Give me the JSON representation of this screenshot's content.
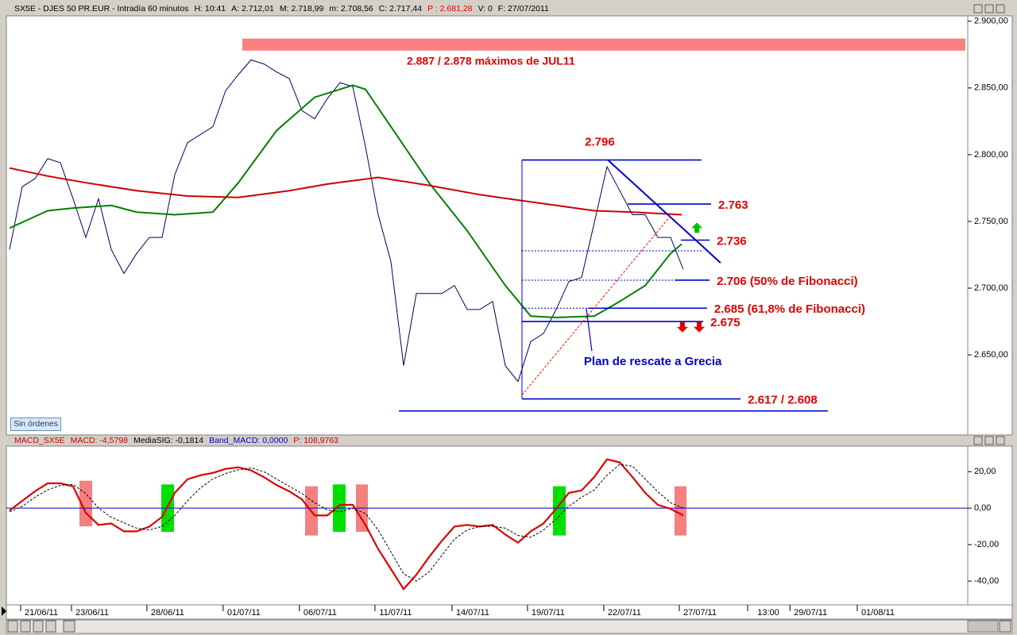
{
  "header": {
    "parts": [
      {
        "text": "SX5E - DJES 50 PR.EUR - Intradía 60 minutos",
        "color": "#000000"
      },
      {
        "text": "H: 10:41",
        "color": "#000000"
      },
      {
        "text": "A: 2.712,01",
        "color": "#000000"
      },
      {
        "text": "M: 2.718,99",
        "color": "#000000"
      },
      {
        "text": "m: 2.708,56",
        "color": "#000000"
      },
      {
        "text": "C: 2.717,44",
        "color": "#000000"
      },
      {
        "text": "P : 2.681,28",
        "color": "#e00000"
      },
      {
        "text": "V: 0",
        "color": "#000000"
      },
      {
        "text": "F: 27/07/2011",
        "color": "#000000"
      }
    ]
  },
  "orders_button": "Sin órdenes",
  "chart_data": [
    {
      "type": "line",
      "xlim": [
        0,
        37.8125
      ],
      "ylim": [
        2590,
        2904
      ],
      "yticks": [
        {
          "value": 2900,
          "label": "2.900,00"
        },
        {
          "value": 2850,
          "label": "2.850,00"
        },
        {
          "value": 2800,
          "label": "2.800,00"
        },
        {
          "value": 2750,
          "label": "2.750,00"
        },
        {
          "value": 2700,
          "label": "2.700,00"
        },
        {
          "value": 2650,
          "label": "2.650,00"
        }
      ],
      "series": [
        {
          "color": "#000060",
          "width": 1,
          "x": [
            0.125,
            0.625,
            1.125,
            1.625,
            2.125,
            2.625,
            3.125,
            3.625,
            4.125,
            4.625,
            5.125,
            5.625,
            6.125,
            6.625,
            7.125,
            7.625,
            8.125,
            8.625,
            9.125,
            9.625,
            10.125,
            10.625,
            11.125,
            11.625,
            12.125,
            12.625,
            13.125,
            13.625,
            14.125,
            14.625,
            15.125,
            15.625,
            16.125,
            16.625,
            17.125,
            17.625,
            18.125,
            18.625,
            19.125,
            19.625,
            20.125,
            20.625,
            21.125,
            21.625,
            22.125,
            22.625,
            23.125,
            23.625,
            24.125,
            24.625,
            25.125,
            25.625,
            26.125,
            26.625
          ],
          "values": [
            2729,
            2776,
            2782,
            2797,
            2794,
            2767,
            2738,
            2767,
            2729,
            2711,
            2726,
            2738,
            2738,
            2785,
            2809,
            2815,
            2821,
            2848,
            2860,
            2871,
            2868,
            2862,
            2857,
            2833,
            2827,
            2842,
            2854,
            2851,
            2806,
            2755,
            2720,
            2642,
            2696,
            2696,
            2696,
            2702,
            2684,
            2684,
            2690,
            2642,
            2630,
            2660,
            2666,
            2684,
            2705,
            2708,
            2749,
            2791,
            2773,
            2755,
            2755,
            2738,
            2738,
            2714
          ]
        },
        {
          "color": "#008000",
          "width": 2,
          "x": [
            0.125,
            1.625,
            2.625,
            4.125,
            5.125,
            6.625,
            8.125,
            9.125,
            10.625,
            12.125,
            13.625,
            14.125,
            15.125,
            16.625,
            18.125,
            19.625,
            20.625,
            21.625,
            23.125,
            24.125,
            25.125,
            26.125,
            26.5625
          ],
          "values": [
            2745,
            2758,
            2760,
            2762,
            2757,
            2755,
            2757,
            2779,
            2818,
            2843,
            2852,
            2849,
            2821,
            2779,
            2743,
            2702,
            2679,
            2678,
            2679,
            2690,
            2702,
            2726,
            2733
          ]
        },
        {
          "color": "#cc0000",
          "width": 2,
          "x": [
            0.125,
            1.625,
            3.125,
            5.125,
            7.125,
            9.125,
            11.125,
            12.625,
            14.625,
            16.625,
            18.625,
            20.125,
            21.625,
            23.125,
            24.625,
            26.5625
          ],
          "values": [
            2790,
            2784,
            2779,
            2773,
            2769,
            2768,
            2773,
            2778,
            2783,
            2777,
            2770,
            2766,
            2762,
            2758,
            2757,
            2755
          ]
        }
      ],
      "band": {
        "values": [
          2887,
          2878
        ],
        "label": "2.887 / 2.878 máximos de JUL11",
        "x": [
          9.28,
          37.72
        ],
        "color": "#f88080"
      },
      "levels": [
        {
          "value": 2796,
          "label": "2.796",
          "x": [
            20.28,
            27.34
          ],
          "label_side": "top"
        },
        {
          "value": 2763,
          "label": "2.763",
          "x": [
            24.44,
            27.72
          ],
          "label_side": "right"
        },
        {
          "value": 2736,
          "label": "2.736",
          "x": [
            26.53,
            27.66
          ],
          "label_side": "right"
        },
        {
          "value": 2706,
          "label": "2.706 (50% de Fibonacci)",
          "x": [
            26.31,
            27.66
          ],
          "label_side": "right"
        },
        {
          "value": 2685,
          "label": "2.685 (61,8% de Fibonacci)",
          "x": [
            22.88,
            27.56
          ],
          "label_side": "right"
        },
        {
          "value": 2675,
          "label": "2.675",
          "x": [
            20.28,
            27.41
          ],
          "label_side": "right"
        },
        {
          "value": 2617,
          "label": "2.617 / 2.608",
          "x": [
            20.28,
            28.88
          ],
          "label_side": "right"
        },
        {
          "value": 2608,
          "x": [
            15.44,
            32.31
          ]
        }
      ],
      "level_color": "#0000cc",
      "label_color": "#e00000",
      "dotted_levels": [
        {
          "value": 2728,
          "x": [
            20.28,
            27.41
          ]
        },
        {
          "value": 2706,
          "x": [
            20.28,
            26.31
          ]
        },
        {
          "value": 2685,
          "x": [
            20.28,
            22.88
          ]
        }
      ],
      "range_line": {
        "x": 20.28,
        "values": [
          2617,
          2796
        ]
      },
      "trendlines": [
        {
          "x": [
            23.66,
            28.09
          ],
          "values": [
            2796,
            2719
          ],
          "color": "#0000cc",
          "dashed": false
        },
        {
          "x": [
            20.28,
            26.16
          ],
          "values": [
            2620,
            2755
          ],
          "color": "#ff0000",
          "dashed": true
        }
      ],
      "annotation": {
        "label": "Plan de rescate a Grecia",
        "x": 22.81,
        "value": 2685,
        "color": "#0000cc"
      },
      "signals": [
        {
          "x": 27.16,
          "value": 2745,
          "direction": "up",
          "color": "#00c000"
        },
        {
          "x": 26.59,
          "value": 2671,
          "direction": "down",
          "color": "#e00000"
        },
        {
          "x": 27.25,
          "value": 2671,
          "direction": "down",
          "color": "#e00000"
        }
      ]
    },
    {
      "type": "line",
      "header": [
        {
          "text": "MACD_SX5E",
          "color": "#cc0000"
        },
        {
          "text": "MACD: -4,5798",
          "color": "#cc0000"
        },
        {
          "text": "MediaSIG: -0,1814",
          "color": "#000000"
        },
        {
          "text": "Band_MACD: 0,0000",
          "color": "#0000cc"
        },
        {
          "text": "P: 108,9763",
          "color": "#cc0000"
        }
      ],
      "xlim": [
        0,
        37.8125
      ],
      "ylim": [
        -53,
        34
      ],
      "yticks": [
        {
          "value": 20,
          "label": "20,00"
        },
        {
          "value": 0,
          "label": "0,00"
        },
        {
          "value": -20,
          "label": "-20,00"
        },
        {
          "value": -40,
          "label": "-40,00"
        }
      ],
      "xticks": [
        {
          "value": 1.375,
          "label": "21/06/11"
        },
        {
          "value": 3.375,
          "label": "23/06/11"
        },
        {
          "value": 6.34,
          "label": "28/06/11"
        },
        {
          "value": 9.34,
          "label": "01/07/11"
        },
        {
          "value": 12.34,
          "label": "06/07/11"
        },
        {
          "value": 15.31,
          "label": "11/07/11"
        },
        {
          "value": 18.34,
          "label": "14/07/11"
        },
        {
          "value": 21.31,
          "label": "19/07/11"
        },
        {
          "value": 24.31,
          "label": "22/07/11"
        },
        {
          "value": 27.28,
          "label": "27/07/11"
        },
        {
          "value": 29.97,
          "label": "13:00"
        },
        {
          "value": 31.63,
          "label": "29/07/11"
        },
        {
          "value": 34.28,
          "label": "01/08/11"
        }
      ],
      "reference_line": {
        "value": 0,
        "color": "#0000cc"
      },
      "zones": [
        {
          "x": [
            2.875,
            3.375
          ],
          "values": [
            15,
            -10
          ],
          "color": "#f48080"
        },
        {
          "x": [
            6.094,
            6.594
          ],
          "values": [
            13,
            -13
          ],
          "color": "#00e000"
        },
        {
          "x": [
            11.75,
            12.25
          ],
          "values": [
            12,
            -15
          ],
          "color": "#f48080"
        },
        {
          "x": [
            12.844,
            13.344
          ],
          "values": [
            13,
            -13
          ],
          "color": "#00e000"
        },
        {
          "x": [
            13.75,
            14.219
          ],
          "values": [
            13,
            -13
          ],
          "color": "#f48080"
        },
        {
          "x": [
            21.5,
            22
          ],
          "values": [
            12,
            -15
          ],
          "color": "#00e000"
        },
        {
          "x": [
            26.28,
            26.75
          ],
          "values": [
            12,
            -15
          ],
          "color": "#f48080"
        }
      ],
      "series": [
        {
          "color": "#dd0000",
          "width": 2.2,
          "x": [
            0.125,
            0.625,
            1.125,
            1.625,
            2.125,
            2.625,
            3.125,
            3.625,
            4.125,
            4.625,
            5.125,
            5.625,
            6.125,
            6.625,
            7.125,
            7.625,
            8.125,
            8.625,
            9.125,
            9.625,
            10.125,
            10.625,
            11.125,
            11.625,
            12.125,
            12.625,
            13.125,
            13.625,
            14.125,
            14.625,
            15.125,
            15.625,
            16.125,
            16.625,
            17.125,
            17.625,
            18.125,
            18.625,
            19.125,
            19.625,
            20.125,
            20.625,
            21.125,
            21.625,
            22.125,
            22.625,
            23.125,
            23.625,
            24.125,
            24.625,
            25.125,
            25.625,
            26.125,
            26.625
          ],
          "values": [
            -1.3,
            4.0,
            9.2,
            13.6,
            13.6,
            11.9,
            -2.6,
            -9.2,
            -8.4,
            -12.7,
            -12.7,
            -10.1,
            -4.8,
            8.4,
            15.8,
            18.0,
            19.3,
            21.5,
            22.4,
            20.7,
            17.1,
            12.7,
            9.2,
            4.8,
            -4.0,
            -4.0,
            1.8,
            1.8,
            -9.2,
            -22.4,
            -33.4,
            -44.4,
            -36.5,
            -26.8,
            -18.0,
            -10.1,
            -9.2,
            -10.1,
            -9.2,
            -14.5,
            -18.9,
            -12.7,
            -8.4,
            -0.4,
            8.4,
            9.7,
            17.1,
            26.8,
            25.1,
            17.1,
            8.4,
            1.8,
            -0.4,
            -4.0
          ]
        },
        {
          "color": "#000000",
          "width": 1,
          "dashed": true,
          "x": [
            0.125,
            0.625,
            1.125,
            1.625,
            2.125,
            2.625,
            3.125,
            3.625,
            4.125,
            4.625,
            5.125,
            5.625,
            6.125,
            6.625,
            7.125,
            7.625,
            8.125,
            8.625,
            9.125,
            9.625,
            10.125,
            10.625,
            11.125,
            11.625,
            12.125,
            12.625,
            13.125,
            13.625,
            14.125,
            14.625,
            15.125,
            15.625,
            16.125,
            16.625,
            17.125,
            17.625,
            18.125,
            18.625,
            19.125,
            19.625,
            20.125,
            20.625,
            21.125,
            21.625,
            22.125,
            22.625,
            23.125,
            23.625,
            24.125,
            24.625,
            25.125,
            25.625,
            26.125,
            26.625
          ],
          "values": [
            -2,
            1,
            6,
            10,
            12.5,
            13,
            8,
            0,
            -5,
            -8,
            -11,
            -12,
            -10,
            -4,
            4,
            11,
            16,
            19,
            21,
            22,
            20,
            16,
            12,
            8,
            3,
            -1,
            -2,
            0,
            -3,
            -12,
            -24,
            -36,
            -40,
            -35,
            -26,
            -17,
            -12,
            -10,
            -10,
            -11,
            -15,
            -16,
            -12,
            -6,
            1,
            6,
            10,
            18,
            24,
            23,
            16,
            9,
            3,
            0
          ]
        }
      ]
    }
  ]
}
